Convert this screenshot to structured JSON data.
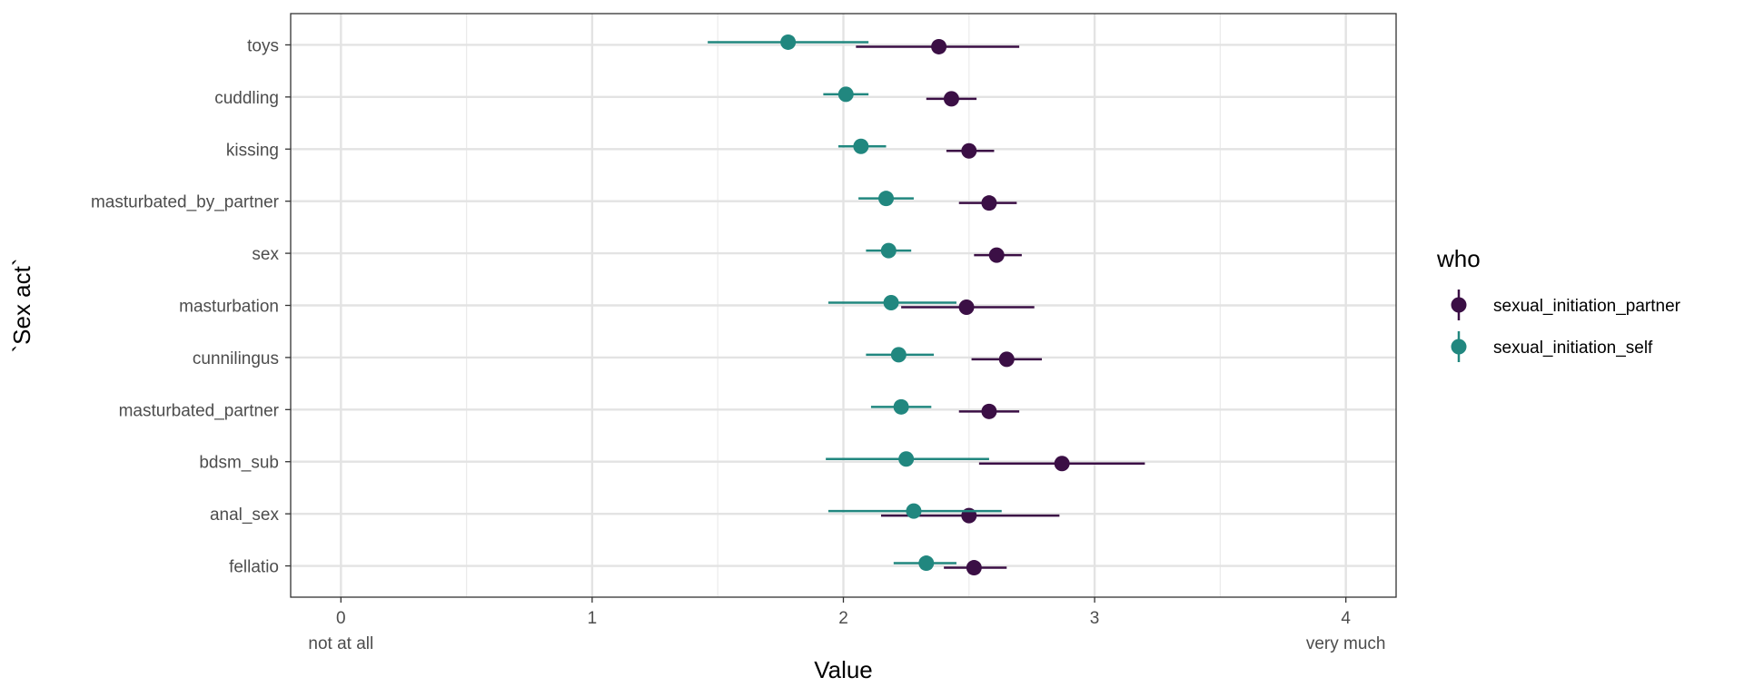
{
  "chart_data": {
    "type": "scatter",
    "xlabel": "Value",
    "ylabel": "`Sex act`",
    "xlim": [
      -0.2,
      4.2
    ],
    "x_ticks": [
      0,
      1,
      2,
      3,
      4
    ],
    "x_tick_sublabels": [
      "not at all",
      "very much"
    ],
    "grid": true,
    "legend": {
      "title": "who",
      "position": "right"
    },
    "categories": [
      "toys",
      "cuddling",
      "kissing",
      "masturbated_by_partner",
      "sex",
      "masturbation",
      "cunnilingus",
      "masturbated_partner",
      "bdsm_sub",
      "anal_sex",
      "fellatio"
    ],
    "series": [
      {
        "name": "sexual_initiation_partner",
        "color": "#3b0f45",
        "values": [
          2.38,
          2.43,
          2.5,
          2.58,
          2.61,
          2.49,
          2.65,
          2.58,
          2.87,
          2.5,
          2.52
        ],
        "lower": [
          2.05,
          2.33,
          2.41,
          2.46,
          2.52,
          2.23,
          2.51,
          2.46,
          2.54,
          2.15,
          2.4
        ],
        "upper": [
          2.7,
          2.53,
          2.6,
          2.69,
          2.71,
          2.76,
          2.79,
          2.7,
          3.2,
          2.86,
          2.65
        ]
      },
      {
        "name": "sexual_initiation_self",
        "color": "#21877f",
        "values": [
          1.78,
          2.01,
          2.07,
          2.17,
          2.18,
          2.19,
          2.22,
          2.23,
          2.25,
          2.28,
          2.33
        ],
        "lower": [
          1.46,
          1.92,
          1.98,
          2.06,
          2.09,
          1.94,
          2.09,
          2.11,
          1.93,
          1.94,
          2.2
        ],
        "upper": [
          2.1,
          2.1,
          2.17,
          2.28,
          2.27,
          2.45,
          2.36,
          2.35,
          2.58,
          2.63,
          2.45
        ]
      }
    ]
  }
}
